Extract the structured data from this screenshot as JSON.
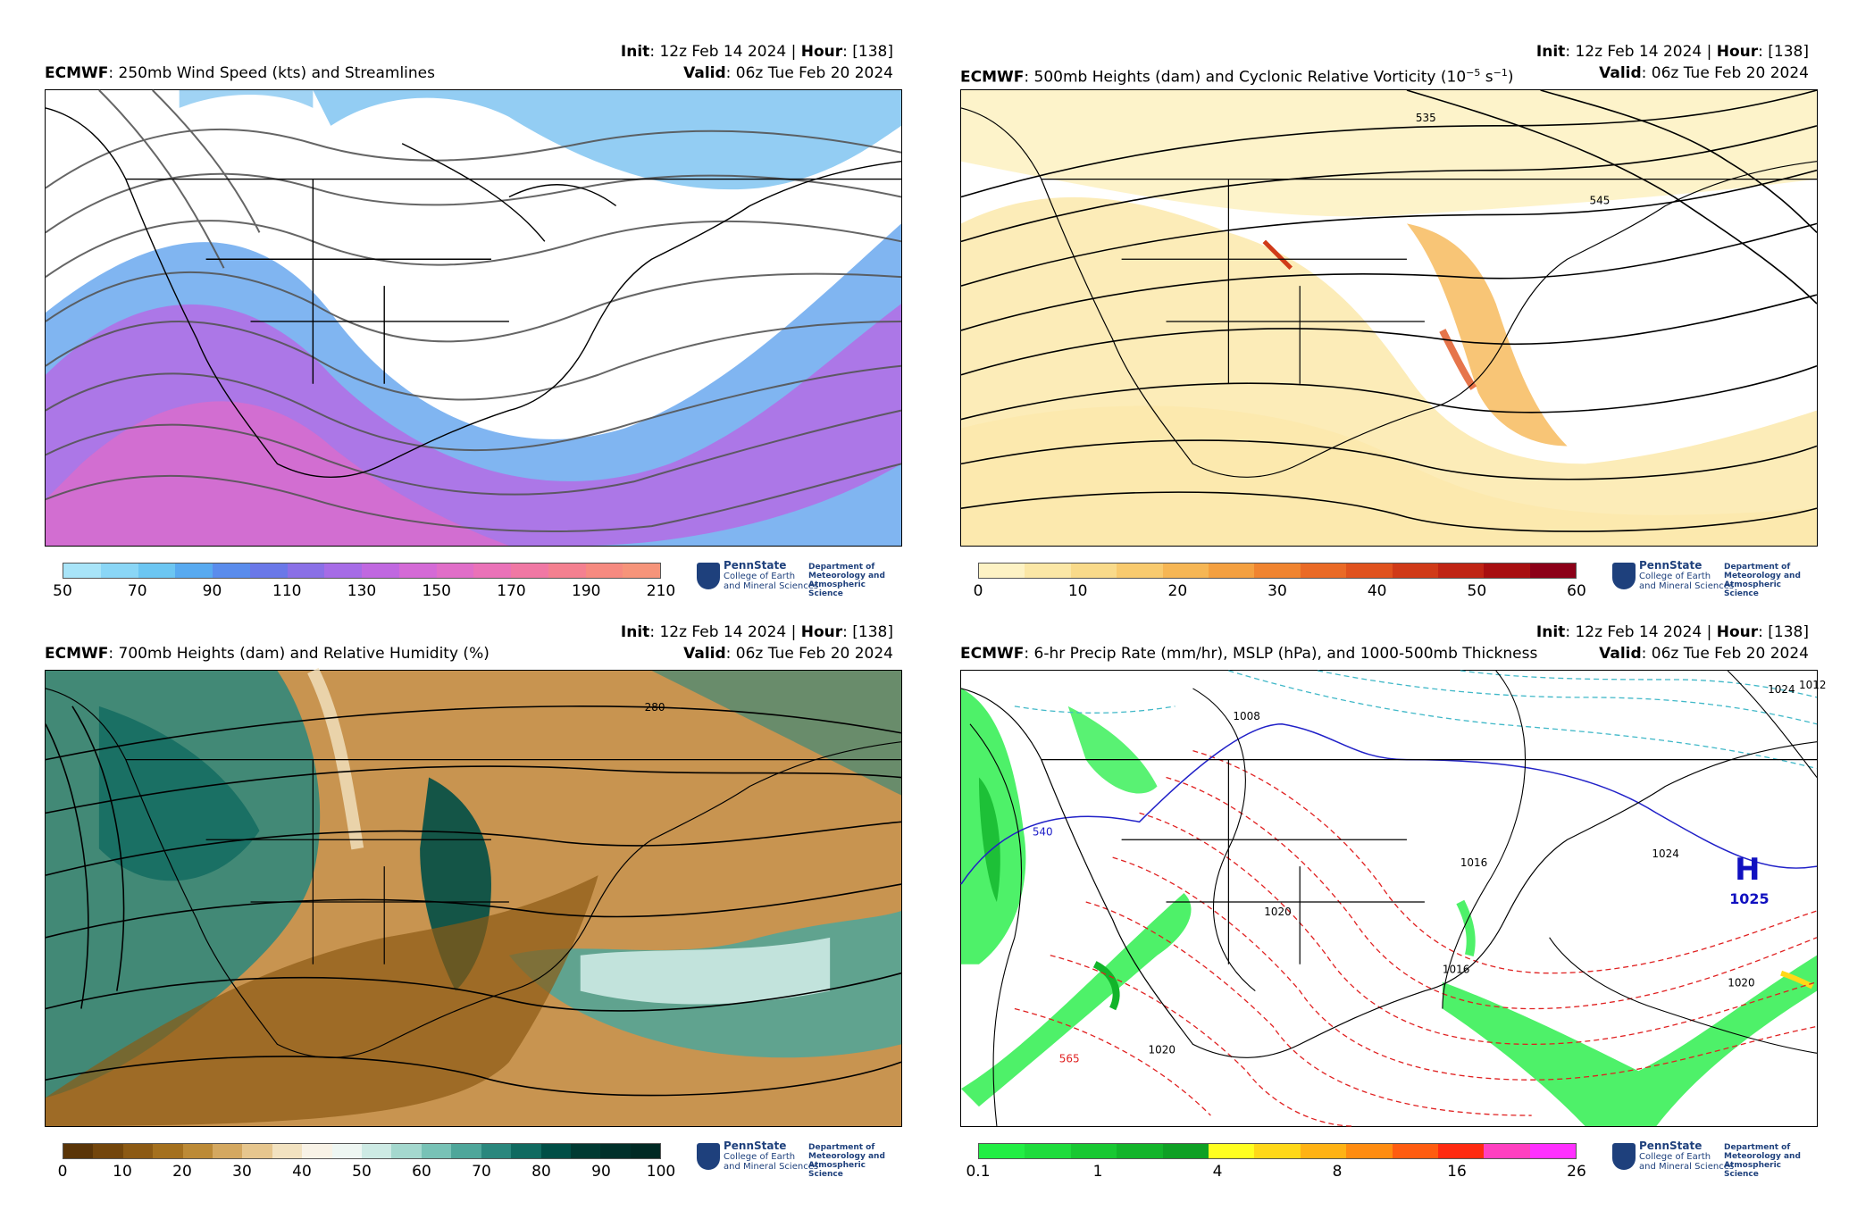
{
  "panels": [
    {
      "model": "ECMWF",
      "title": ": 250mb Wind Speed (kts) and Streamlines",
      "init_label": "Init",
      "init_text": ": 12z Feb 14 2024 | ",
      "hour_label": "Hour",
      "hour_text": ": [138]",
      "valid_label": "Valid",
      "valid_text": ": 06z Tue Feb 20 2024",
      "colorbar": {
        "ticks": [
          "50",
          "70",
          "90",
          "110",
          "130",
          "150",
          "170",
          "190",
          "210"
        ],
        "colors": [
          "#a8e4f8",
          "#8ad6f6",
          "#6cc6f2",
          "#58aaf0",
          "#5a8cec",
          "#6a78e8",
          "#8a70e6",
          "#a66ce6",
          "#c068e0",
          "#d46ad6",
          "#e06ec8",
          "#ea72b8",
          "#f078a4",
          "#f48090",
          "#f68a80",
          "#f6947a"
        ]
      }
    },
    {
      "model": "ECMWF",
      "title": ": 500mb Heights (dam) and Cyclonic Relative Vorticity (10",
      "title_sup": "−5",
      "title_tail": " s",
      "title_sup2": "−1",
      "title_end": ")",
      "init_label": "Init",
      "init_text": ": 12z Feb 14 2024 | ",
      "hour_label": "Hour",
      "hour_text": ": [138]",
      "valid_label": "Valid",
      "valid_text": ": 06z Tue Feb 20 2024",
      "contour_labels": [
        "535",
        "545"
      ],
      "colorbar": {
        "ticks": [
          "0",
          "10",
          "20",
          "30",
          "40",
          "50",
          "60"
        ],
        "colors": [
          "#fdf2c4",
          "#fbe7a6",
          "#f9da8a",
          "#f8ca6e",
          "#f6b654",
          "#f4a040",
          "#f08430",
          "#ea6a26",
          "#e0521e",
          "#d03a18",
          "#c02414",
          "#a80e10",
          "#8c0018"
        ]
      }
    },
    {
      "model": "ECMWF",
      "title": ": 700mb Heights (dam) and Relative Humidity (%)",
      "init_label": "Init",
      "init_text": ": 12z Feb 14 2024 | ",
      "hour_label": "Hour",
      "hour_text": ": [138]",
      "valid_label": "Valid",
      "valid_text": ": 06z Tue Feb 20 2024",
      "contour_labels": [
        "280"
      ],
      "colorbar": {
        "ticks": [
          "0",
          "10",
          "20",
          "30",
          "40",
          "50",
          "60",
          "70",
          "80",
          "90",
          "100"
        ],
        "colors": [
          "#5a3508",
          "#73460c",
          "#8c5a14",
          "#a4701e",
          "#bc8a36",
          "#d4a860",
          "#e6c68e",
          "#f2e2c0",
          "#f8f2e6",
          "#eef6f2",
          "#cdeae4",
          "#a4d8ce",
          "#78c2b6",
          "#4ea69a",
          "#2a877d",
          "#106a60",
          "#004e46",
          "#003a32",
          "#00302a",
          "#002a24"
        ]
      }
    },
    {
      "model": "ECMWF",
      "title": ": 6-hr Precip Rate (mm/hr), MSLP (hPa), and 1000-500mb Thickness",
      "init_label": "Init",
      "init_text": ": 12z Feb 14 2024 | ",
      "hour_label": "Hour",
      "hour_text": ": [138]",
      "valid_label": "Valid",
      "valid_text": ": 06z Tue Feb 20 2024",
      "contour_labels": [
        "1008",
        "1016",
        "1016",
        "1024",
        "1020",
        "1020",
        "1012",
        "1020",
        "540",
        "565",
        "1024"
      ],
      "high_label": "H",
      "high_value": "1025",
      "colorbar": {
        "ticks": [
          "0.1",
          "1",
          "4",
          "8",
          "16",
          "26"
        ],
        "colors": [
          "#22ee44",
          "#1edc3c",
          "#18c832",
          "#12b42a",
          "#0ea024",
          "#ffff20",
          "#ffd818",
          "#ffb214",
          "#ff8c10",
          "#ff5c10",
          "#ff2a10",
          "#ff40c0",
          "#ff30ff"
        ]
      }
    }
  ],
  "logo": {
    "university": "PennState",
    "college_line1": "College of Earth",
    "college_line2": "and Mineral Sciences",
    "dept_line1": "Department of",
    "dept_line2": "Meteorology and",
    "dept_line3": "Atmospheric Science"
  },
  "colors": {
    "streamline": "#555555",
    "contour": "#000000",
    "thickness_warm": "#e02020",
    "thickness_cold": "#40b8c8",
    "isobar_blue": "#2020c8",
    "high_marker": "#1010c0"
  }
}
